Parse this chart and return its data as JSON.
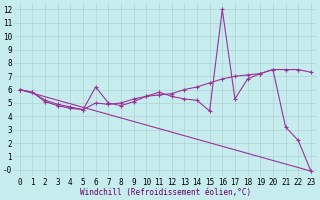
{
  "xlabel": "Windchill (Refroidissement éolien,°C)",
  "xlim": [
    -0.5,
    23.5
  ],
  "ylim": [
    -0.5,
    12.5
  ],
  "xticks": [
    0,
    1,
    2,
    3,
    4,
    5,
    6,
    7,
    8,
    9,
    10,
    11,
    12,
    13,
    14,
    15,
    16,
    17,
    18,
    19,
    20,
    21,
    22,
    23
  ],
  "yticks": [
    0,
    1,
    2,
    3,
    4,
    5,
    6,
    7,
    8,
    9,
    10,
    11,
    12
  ],
  "ytick_labels": [
    "-0",
    "1",
    "2",
    "3",
    "4",
    "5",
    "6",
    "7",
    "8",
    "9",
    "10",
    "11",
    "12"
  ],
  "background_color": "#c6ecee",
  "line_color": "#993399",
  "grid_color": "#aacccc",
  "line1_x": [
    0,
    1,
    2,
    3,
    4,
    5,
    6,
    7,
    8,
    9,
    10,
    11,
    12,
    13,
    14,
    15,
    16,
    17,
    18,
    19,
    20,
    21,
    22,
    23
  ],
  "line1_y": [
    6.0,
    5.8,
    5.2,
    4.9,
    4.7,
    4.5,
    6.2,
    5.0,
    4.8,
    5.1,
    5.5,
    5.8,
    5.5,
    5.3,
    5.2,
    4.4,
    12.0,
    5.3,
    6.8,
    7.2,
    7.5,
    3.2,
    2.2,
    -0.1
  ],
  "line2_x": [
    0,
    1,
    2,
    3,
    4,
    5,
    6,
    7,
    8,
    9,
    10,
    11,
    12,
    13,
    14,
    15,
    16,
    17,
    18,
    19,
    20,
    21,
    22,
    23
  ],
  "line2_y": [
    6.0,
    5.8,
    5.1,
    4.8,
    4.6,
    4.5,
    5.0,
    4.9,
    5.0,
    5.3,
    5.5,
    5.6,
    5.7,
    6.0,
    6.2,
    6.5,
    6.8,
    7.0,
    7.1,
    7.2,
    7.5,
    7.5,
    7.5,
    7.3
  ],
  "line3_x": [
    0,
    23
  ],
  "line3_y": [
    6.0,
    -0.1
  ],
  "tick_fontsize": 5.5,
  "xlabel_fontsize": 5.5,
  "marker_size": 3.0,
  "linewidth": 0.8
}
